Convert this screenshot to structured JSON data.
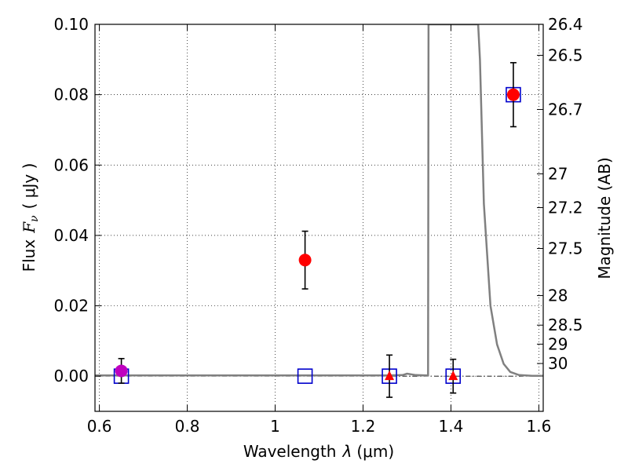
{
  "chart_data": {
    "type": "scatter",
    "xlabel_prefix": "Wavelength",
    "xlabel_symbol": "λ",
    "xlabel_unit": "(μm)",
    "ylabel_prefix": "Flux",
    "ylabel_symbol": "F",
    "ylabel_subscript": "ν",
    "ylabel_unit": "( μJy )",
    "y2label": "Magnitude (AB)",
    "xlim": [
      0.59,
      1.61
    ],
    "ylim": [
      -0.01,
      0.1
    ],
    "xticks": [
      {
        "value": 0.6,
        "label": "0.6"
      },
      {
        "value": 0.8,
        "label": "0.8"
      },
      {
        "value": 1.0,
        "label": "1"
      },
      {
        "value": 1.2,
        "label": "1.2"
      },
      {
        "value": 1.4,
        "label": "1.4"
      },
      {
        "value": 1.6,
        "label": "1.6"
      }
    ],
    "yticks": [
      {
        "value": 0.0,
        "label": "0.00"
      },
      {
        "value": 0.02,
        "label": "0.02"
      },
      {
        "value": 0.04,
        "label": "0.04"
      },
      {
        "value": 0.06,
        "label": "0.06"
      },
      {
        "value": 0.08,
        "label": "0.08"
      },
      {
        "value": 0.1,
        "label": "0.10"
      }
    ],
    "y2ticks": [
      {
        "flux": 0.1,
        "label": "26.4"
      },
      {
        "flux": 0.0912,
        "label": "26.5"
      },
      {
        "flux": 0.0758,
        "label": "26.7"
      },
      {
        "flux": 0.0575,
        "label": "27"
      },
      {
        "flux": 0.0479,
        "label": "27.2"
      },
      {
        "flux": 0.0363,
        "label": "27.5"
      },
      {
        "flux": 0.0229,
        "label": "28"
      },
      {
        "flux": 0.0145,
        "label": "28.5"
      },
      {
        "flux": 0.0091,
        "label": "29"
      },
      {
        "flux": 0.0036,
        "label": "30"
      }
    ],
    "grid": true,
    "zero_line": true,
    "model_curve": {
      "color": "#808080",
      "points": [
        [
          0.59,
          0.0002
        ],
        [
          1.25,
          0.0002
        ],
        [
          1.29,
          0.0003
        ],
        [
          1.3,
          0.0007
        ],
        [
          1.32,
          0.0003
        ],
        [
          1.345,
          0.0002
        ],
        [
          1.348,
          0.0002
        ],
        [
          1.349,
          0.1
        ],
        [
          1.462,
          0.1
        ],
        [
          1.466,
          0.09
        ],
        [
          1.475,
          0.049
        ],
        [
          1.49,
          0.02
        ],
        [
          1.505,
          0.009
        ],
        [
          1.52,
          0.0035
        ],
        [
          1.535,
          0.0012
        ],
        [
          1.555,
          0.0003
        ],
        [
          1.585,
          0.0001
        ],
        [
          1.61,
          0.0001
        ]
      ]
    },
    "measured_points": [
      {
        "x": 0.65,
        "y": 0.0015,
        "err": 0.0035,
        "color": "#bf00bf",
        "marker": "circle"
      },
      {
        "x": 1.068,
        "y": 0.033,
        "err": 0.0082,
        "color": "#ff0000",
        "marker": "circle"
      },
      {
        "x": 1.26,
        "y": 0.0,
        "err": 0.006,
        "color": "#ff0000",
        "marker": "triangle"
      },
      {
        "x": 1.405,
        "y": 0.0,
        "err": 0.0048,
        "color": "#ff0000",
        "marker": "triangle"
      },
      {
        "x": 1.542,
        "y": 0.08,
        "err": 0.0091,
        "color": "#ff0000",
        "marker": "circle"
      }
    ],
    "model_points": [
      {
        "x": 0.65,
        "y": 0.0,
        "color": "#0000cc"
      },
      {
        "x": 1.068,
        "y": 0.0,
        "color": "#0000cc"
      },
      {
        "x": 1.26,
        "y": 0.0,
        "color": "#0000cc"
      },
      {
        "x": 1.405,
        "y": 0.0,
        "color": "#0000cc"
      },
      {
        "x": 1.542,
        "y": 0.08,
        "color": "#0000cc"
      }
    ]
  }
}
